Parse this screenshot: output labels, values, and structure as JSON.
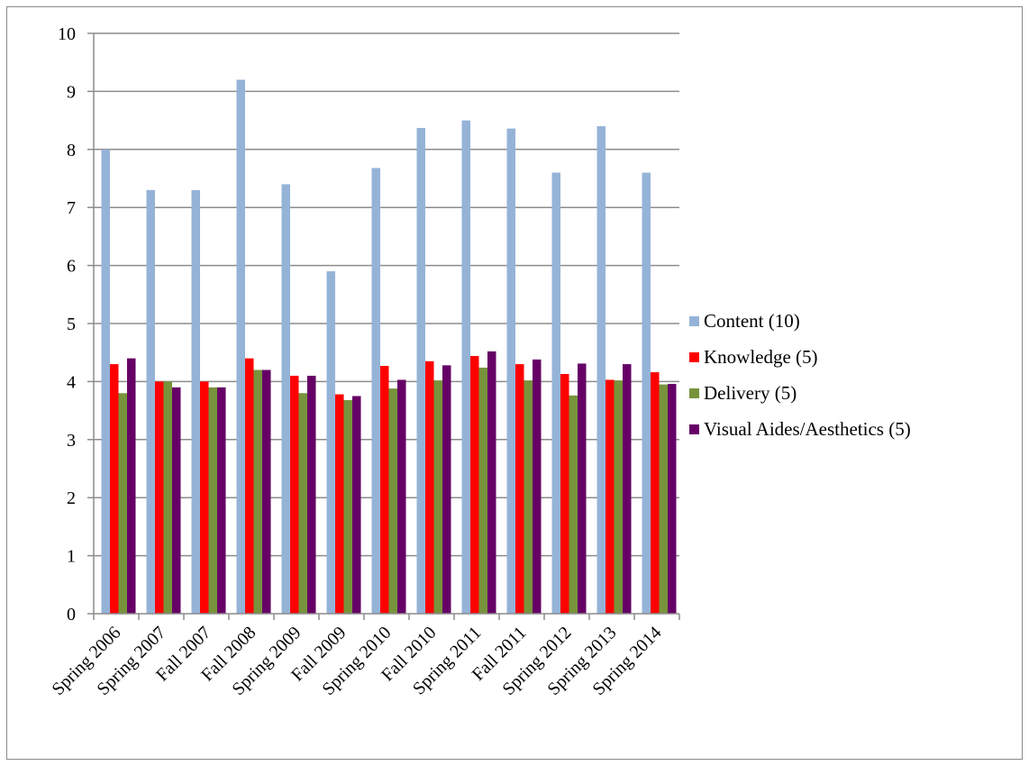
{
  "chart_data": {
    "type": "bar",
    "title": "",
    "xlabel": "",
    "ylabel": "",
    "ylim": [
      0,
      10
    ],
    "yticks": [
      0,
      1,
      2,
      3,
      4,
      5,
      6,
      7,
      8,
      9,
      10
    ],
    "grid": true,
    "legend_position": "right",
    "categories": [
      "Spring 2006",
      "Spring 2007",
      "Fall 2007",
      "Fall 2008",
      "Spring 2009",
      "Fall 2009",
      "Spring 2010",
      "Fall 2010",
      "Spring 2011",
      "Fall 2011",
      "Spring 2012",
      "Spring 2013",
      "Spring 2014"
    ],
    "series": [
      {
        "name": "Content (10)",
        "color": "#95b3d7",
        "values": [
          8.0,
          7.3,
          7.3,
          9.2,
          7.4,
          5.9,
          7.68,
          8.37,
          8.5,
          8.36,
          7.6,
          8.4,
          7.6
        ]
      },
      {
        "name": "Knowledge (5)",
        "color": "#ff0000",
        "values": [
          4.3,
          4.0,
          4.0,
          4.4,
          4.1,
          3.78,
          4.27,
          4.35,
          4.44,
          4.3,
          4.13,
          4.03,
          4.16
        ]
      },
      {
        "name": "Delivery (5)",
        "color": "#77933c",
        "values": [
          3.8,
          4.0,
          3.9,
          4.2,
          3.8,
          3.68,
          3.88,
          4.02,
          4.24,
          4.02,
          3.76,
          4.02,
          3.95
        ]
      },
      {
        "name": "Visual Aides/Aesthetics (5)",
        "color": "#660066",
        "values": [
          4.4,
          3.9,
          3.9,
          4.2,
          4.1,
          3.75,
          4.03,
          4.28,
          4.52,
          4.38,
          4.31,
          4.3,
          3.96
        ]
      }
    ]
  }
}
